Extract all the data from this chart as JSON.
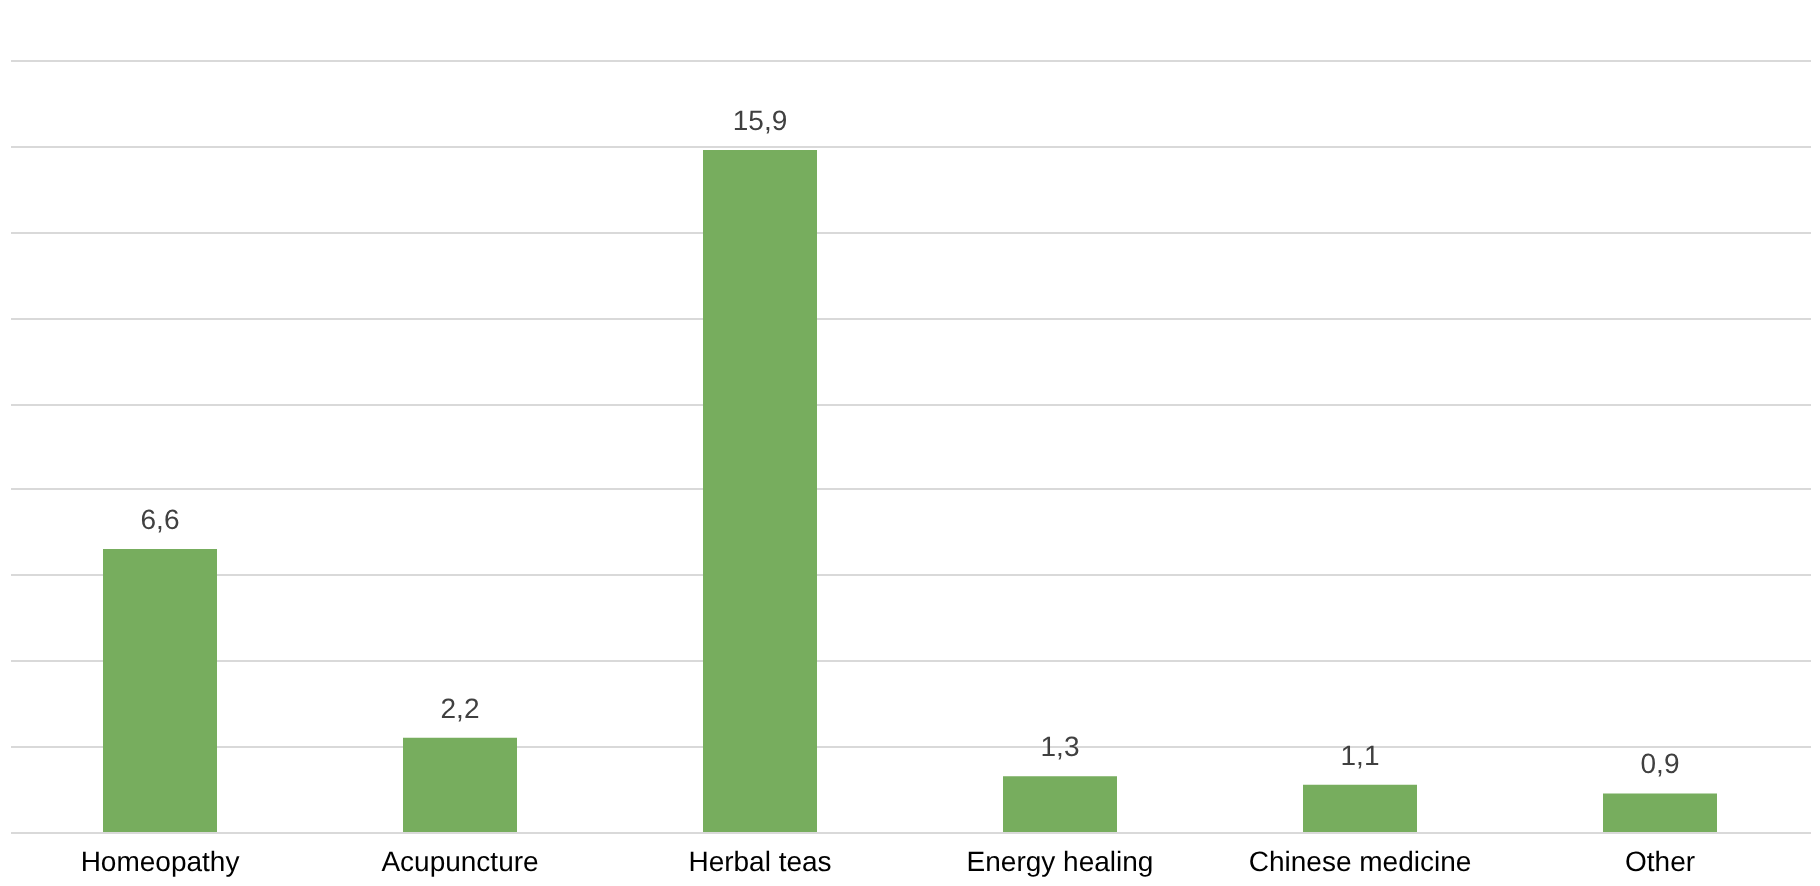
{
  "chart_data": {
    "type": "bar",
    "categories": [
      "Homeopathy",
      "Acupuncture",
      "Herbal teas",
      "Energy healing",
      "Chinese medicine",
      "Other"
    ],
    "values": [
      6.6,
      2.2,
      15.9,
      1.3,
      1.1,
      0.9
    ],
    "value_labels": [
      "6,6",
      "2,2",
      "15,9",
      "1,3",
      "1,1",
      "0,9"
    ],
    "color": "#77ad5e",
    "ylim": [
      0,
      18
    ],
    "yticks": [
      {
        "value": 0,
        "label": null
      },
      {
        "value": 2,
        "label": null
      },
      {
        "value": 4,
        "label": null
      },
      {
        "value": 6,
        "label": null
      },
      {
        "value": 8,
        "label": null
      },
      {
        "value": 10,
        "label": null
      },
      {
        "value": 12,
        "label": null
      },
      {
        "value": 14,
        "label": null
      },
      {
        "value": 16,
        "label": null
      },
      {
        "value": 18,
        "label": null
      }
    ],
    "grid": "y",
    "tick_labels": "x"
  }
}
